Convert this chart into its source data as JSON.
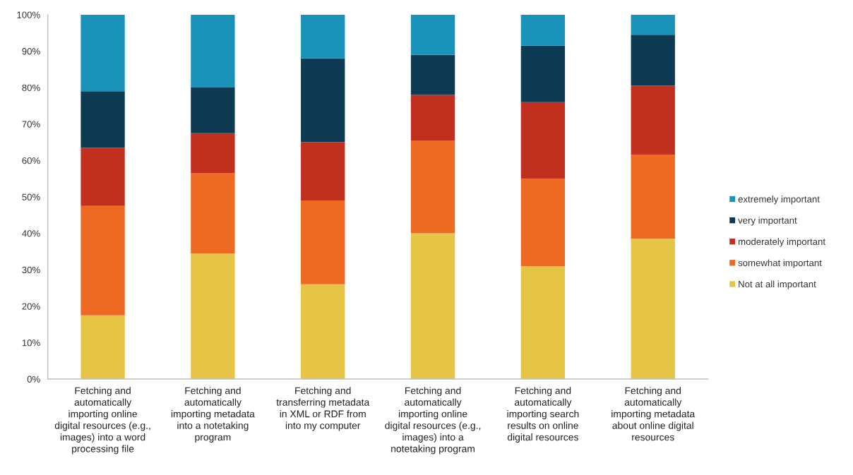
{
  "chart_data": {
    "type": "bar",
    "stacked": true,
    "legend": "right",
    "categories": [
      "Fetching and\nautomatically\nimporting online\ndigital resources (e.g.,\nimages) into a word\nprocessing file",
      "Fetching and\nautomatically\nimporting metadata\ninto a notetaking\nprogram",
      "Fetching and\ntransferring metadata\nin XML or RDF from\ninto my computer",
      "Fetching and\nautomatically\nimporting online\ndigital resources (e.g.,\nimages) into a\nnotetaking program",
      "Fetching and\nautomatically\nimporting search\nresults on online\ndigital resources",
      "Fetching and\nautomatically\nimporting metadata\nabout online digital\nresources"
    ],
    "series": [
      {
        "name": "Not at all important",
        "color": "#e6c445",
        "values": [
          17.5,
          34.5,
          26,
          40,
          31,
          38.5
        ]
      },
      {
        "name": "somewhat important",
        "color": "#ec6a22",
        "values": [
          30,
          22,
          23,
          25.5,
          24,
          23
        ]
      },
      {
        "name": "moderately important",
        "color": "#c1301f",
        "values": [
          16,
          11,
          16,
          12.5,
          21,
          19
        ]
      },
      {
        "name": "very important",
        "color": "#0f3a54",
        "values": [
          15.5,
          12.5,
          23,
          11,
          15.5,
          14
        ]
      },
      {
        "name": "extremely important",
        "color": "#1a93bb",
        "values": [
          21,
          20,
          12,
          11,
          8.5,
          5.5
        ]
      }
    ],
    "ylim": [
      0,
      100
    ],
    "yticks": [
      {
        "value": 0,
        "label": "0%"
      },
      {
        "value": 10,
        "label": "10%"
      },
      {
        "value": 20,
        "label": "20%"
      },
      {
        "value": 30,
        "label": "30%"
      },
      {
        "value": 40,
        "label": "40%"
      },
      {
        "value": 50,
        "label": "50%"
      },
      {
        "value": 60,
        "label": "60%"
      },
      {
        "value": 70,
        "label": "70%"
      },
      {
        "value": 80,
        "label": "80%"
      },
      {
        "value": 90,
        "label": "90%"
      },
      {
        "value": 100,
        "label": "100%"
      }
    ]
  }
}
